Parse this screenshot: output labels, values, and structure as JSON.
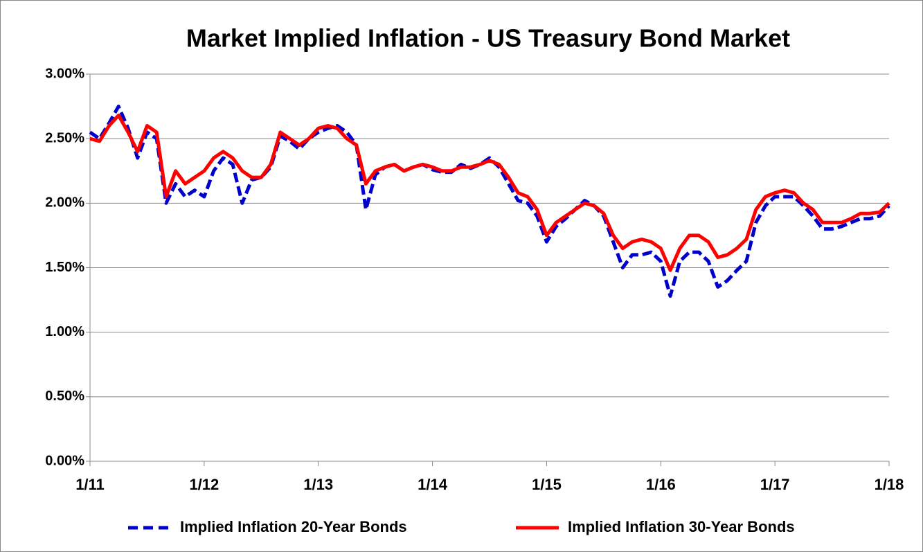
{
  "chart_data": {
    "type": "line",
    "title": "Market Implied Inflation - US Treasury Bond Market",
    "x": [
      "2011-01",
      "2011-02",
      "2011-03",
      "2011-04",
      "2011-05",
      "2011-06",
      "2011-07",
      "2011-08",
      "2011-09",
      "2011-10",
      "2011-11",
      "2011-12",
      "2012-01",
      "2012-02",
      "2012-03",
      "2012-04",
      "2012-05",
      "2012-06",
      "2012-07",
      "2012-08",
      "2012-09",
      "2012-10",
      "2012-11",
      "2012-12",
      "2013-01",
      "2013-02",
      "2013-03",
      "2013-04",
      "2013-05",
      "2013-06",
      "2013-07",
      "2013-08",
      "2013-09",
      "2013-10",
      "2013-11",
      "2013-12",
      "2014-01",
      "2014-02",
      "2014-03",
      "2014-04",
      "2014-05",
      "2014-06",
      "2014-07",
      "2014-08",
      "2014-09",
      "2014-10",
      "2014-11",
      "2014-12",
      "2015-01",
      "2015-02",
      "2015-03",
      "2015-04",
      "2015-05",
      "2015-06",
      "2015-07",
      "2015-08",
      "2015-09",
      "2015-10",
      "2015-11",
      "2015-12",
      "2016-01",
      "2016-02",
      "2016-03",
      "2016-04",
      "2016-05",
      "2016-06",
      "2016-07",
      "2016-08",
      "2016-09",
      "2016-10",
      "2016-11",
      "2016-12",
      "2017-01",
      "2017-02",
      "2017-03",
      "2017-04",
      "2017-05",
      "2017-06",
      "2017-07",
      "2017-08",
      "2017-09",
      "2017-10",
      "2017-11",
      "2017-12",
      "2018-01"
    ],
    "series": [
      {
        "name": "Implied Inflation 20-Year Bonds",
        "color": "#0000cc",
        "dash": true,
        "values": [
          2.55,
          2.5,
          2.62,
          2.75,
          2.58,
          2.35,
          2.55,
          2.5,
          2.0,
          2.15,
          2.05,
          2.1,
          2.05,
          2.25,
          2.35,
          2.3,
          2.0,
          2.18,
          2.2,
          2.28,
          2.52,
          2.48,
          2.42,
          2.5,
          2.55,
          2.58,
          2.6,
          2.55,
          2.45,
          1.95,
          2.22,
          2.28,
          2.3,
          2.25,
          2.28,
          2.3,
          2.26,
          2.24,
          2.24,
          2.3,
          2.27,
          2.3,
          2.35,
          2.28,
          2.15,
          2.02,
          2.0,
          1.9,
          1.7,
          1.82,
          1.88,
          1.95,
          2.02,
          1.98,
          1.9,
          1.7,
          1.5,
          1.6,
          1.6,
          1.62,
          1.55,
          1.28,
          1.55,
          1.62,
          1.62,
          1.55,
          1.35,
          1.4,
          1.48,
          1.55,
          1.85,
          1.98,
          2.05,
          2.05,
          2.05,
          1.98,
          1.9,
          1.8,
          1.8,
          1.82,
          1.85,
          1.88,
          1.88,
          1.9,
          1.98
        ]
      },
      {
        "name": "Implied Inflation 30-Year Bonds",
        "color": "#ff0000",
        "dash": false,
        "values": [
          2.5,
          2.48,
          2.6,
          2.68,
          2.55,
          2.4,
          2.6,
          2.55,
          2.05,
          2.25,
          2.15,
          2.2,
          2.25,
          2.35,
          2.4,
          2.35,
          2.25,
          2.2,
          2.2,
          2.3,
          2.55,
          2.5,
          2.45,
          2.5,
          2.58,
          2.6,
          2.58,
          2.5,
          2.45,
          2.15,
          2.25,
          2.28,
          2.3,
          2.25,
          2.28,
          2.3,
          2.28,
          2.25,
          2.25,
          2.28,
          2.28,
          2.3,
          2.33,
          2.3,
          2.2,
          2.08,
          2.05,
          1.95,
          1.75,
          1.85,
          1.9,
          1.95,
          2.0,
          1.98,
          1.92,
          1.75,
          1.65,
          1.7,
          1.72,
          1.7,
          1.65,
          1.48,
          1.65,
          1.75,
          1.75,
          1.7,
          1.58,
          1.6,
          1.65,
          1.72,
          1.95,
          2.05,
          2.08,
          2.1,
          2.08,
          2.0,
          1.95,
          1.85,
          1.85,
          1.85,
          1.88,
          1.92,
          1.92,
          1.93,
          2.0
        ]
      }
    ],
    "xlim": [
      "2011-01",
      "2018-01"
    ],
    "xticks": [
      {
        "value": "2011-01",
        "label": "1/11"
      },
      {
        "value": "2012-01",
        "label": "1/12"
      },
      {
        "value": "2013-01",
        "label": "1/13"
      },
      {
        "value": "2014-01",
        "label": "1/14"
      },
      {
        "value": "2015-01",
        "label": "1/15"
      },
      {
        "value": "2016-01",
        "label": "1/16"
      },
      {
        "value": "2017-01",
        "label": "1/17"
      },
      {
        "value": "2018-01",
        "label": "1/18"
      }
    ],
    "ylim": [
      0,
      3
    ],
    "yticks": [
      {
        "value": 0,
        "label": "0.00%"
      },
      {
        "value": 0.5,
        "label": "0.50%"
      },
      {
        "value": 1,
        "label": "1.00%"
      },
      {
        "value": 1.5,
        "label": "1.50%"
      },
      {
        "value": 2,
        "label": "2.00%"
      },
      {
        "value": 2.5,
        "label": "2.50%"
      },
      {
        "value": 3,
        "label": "3.00%"
      }
    ],
    "grid": true,
    "legend": "bottom"
  }
}
